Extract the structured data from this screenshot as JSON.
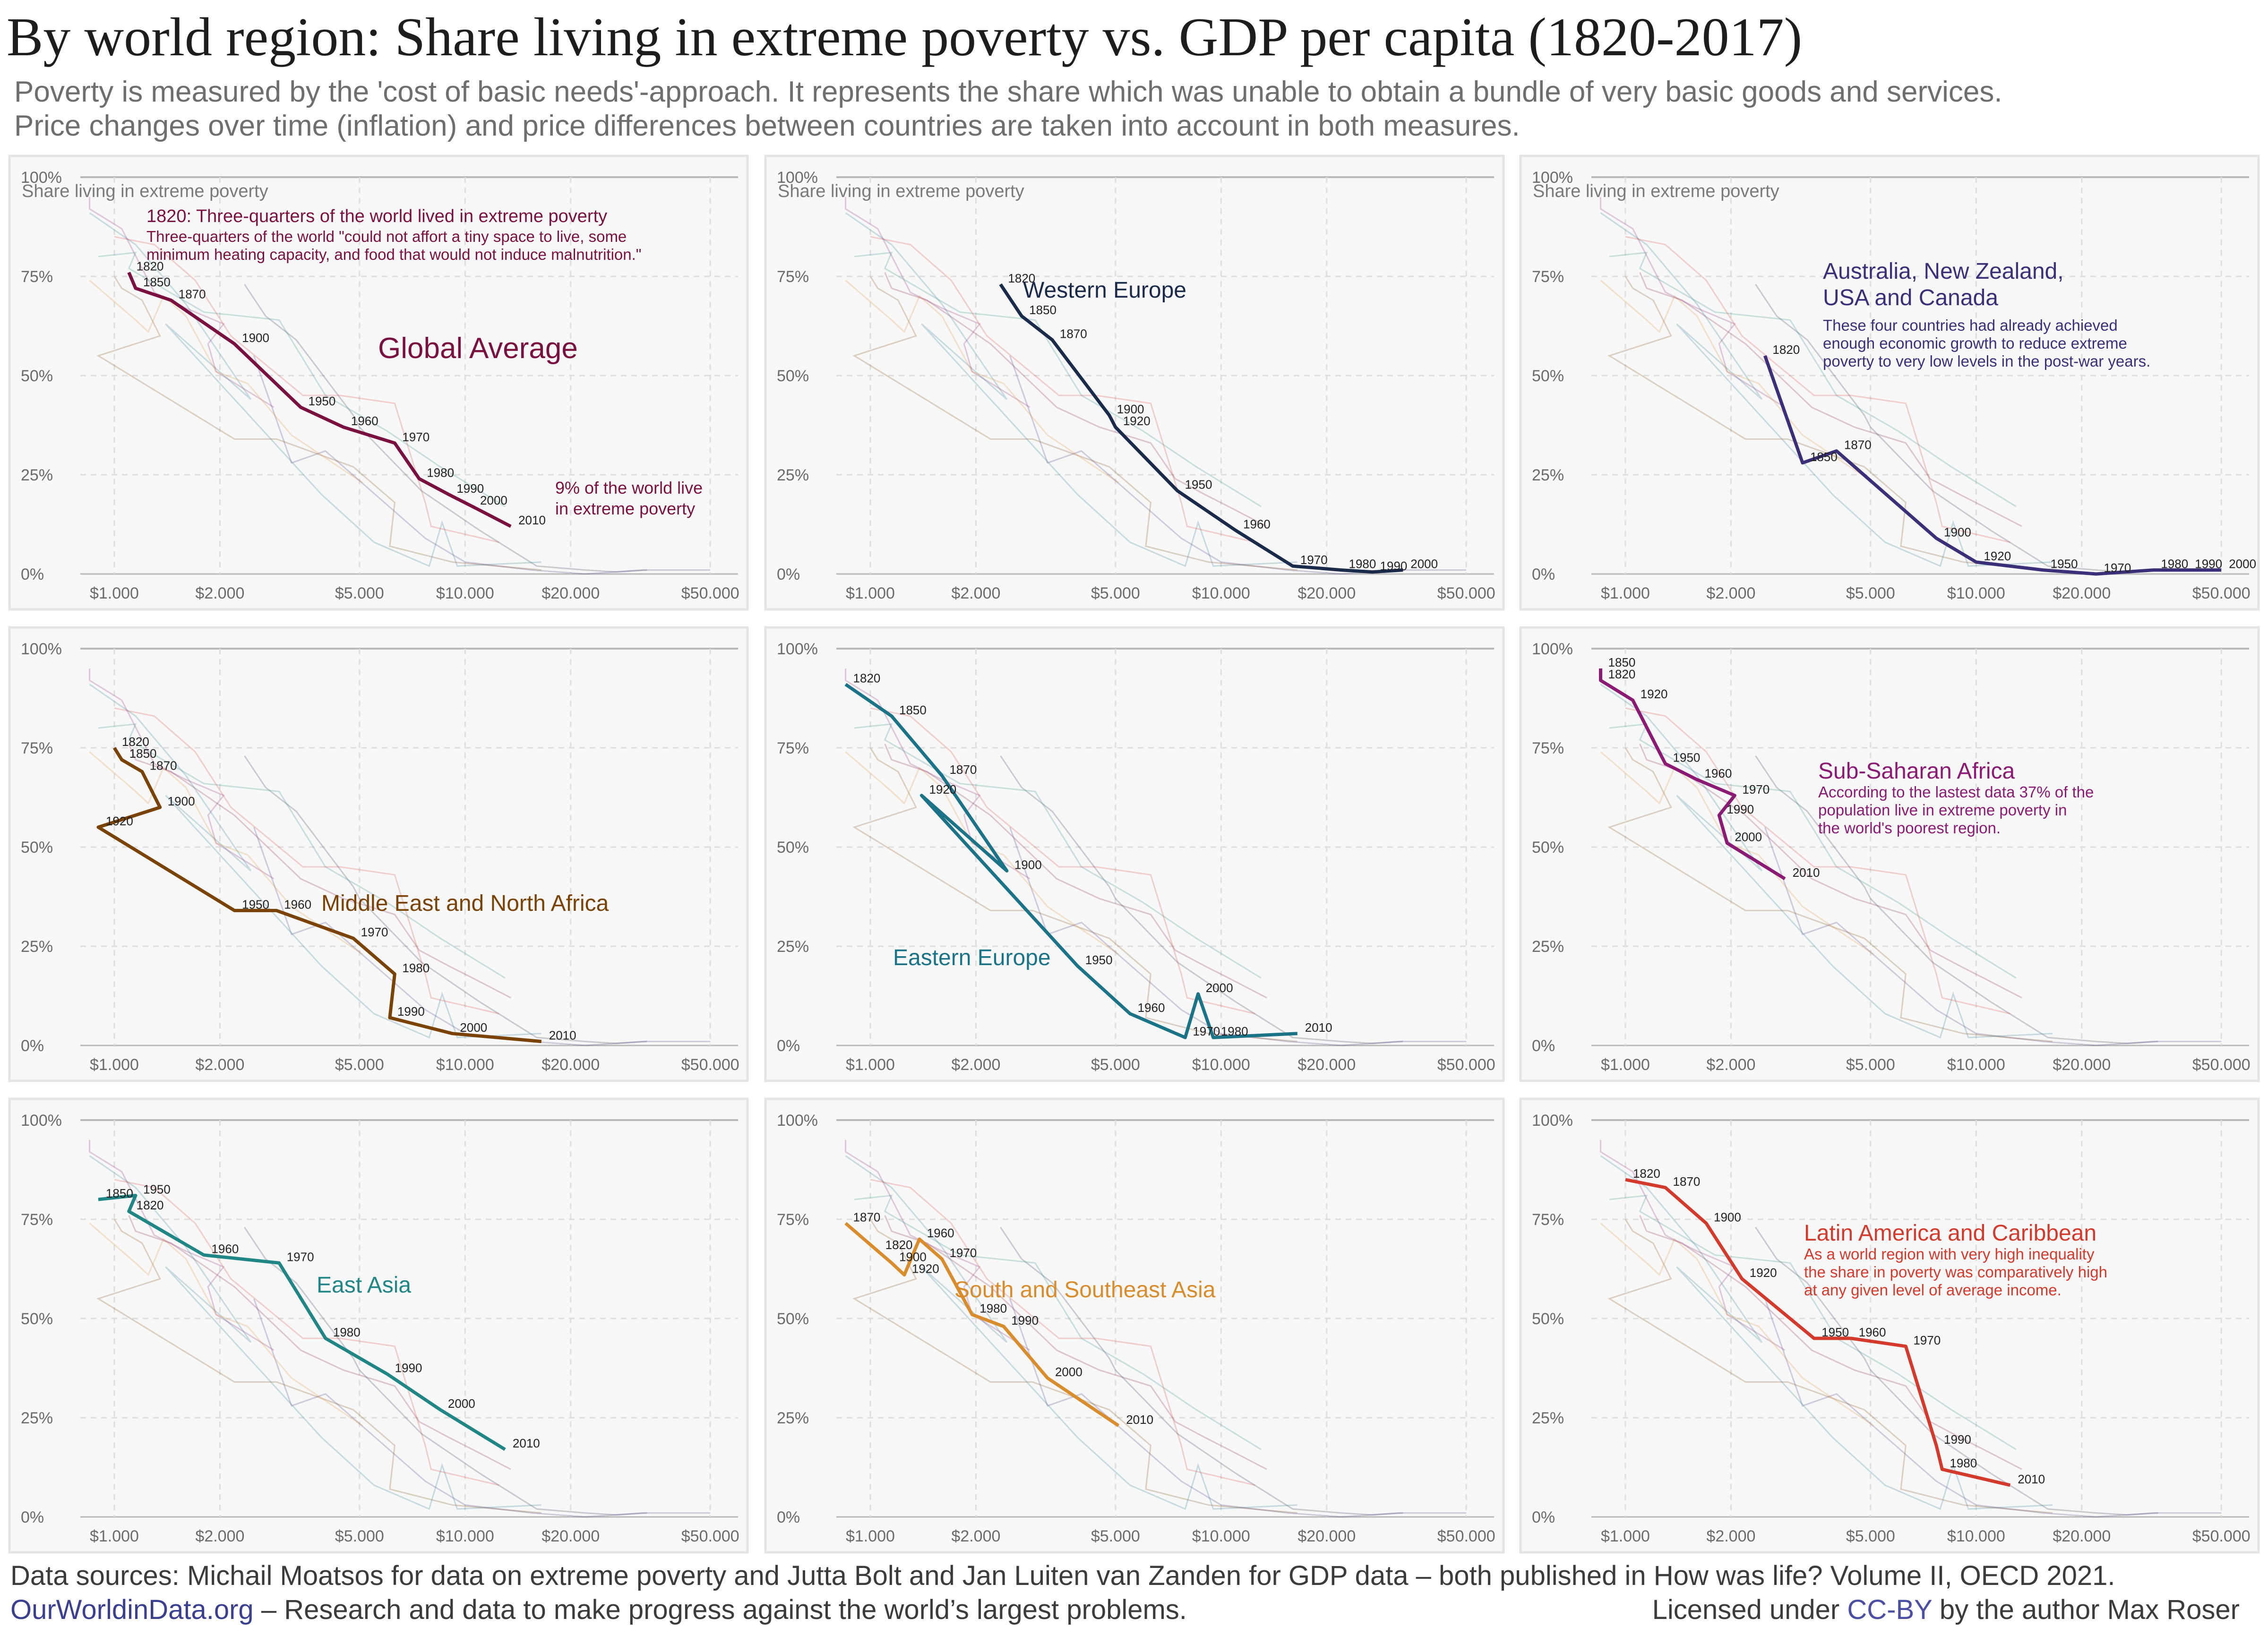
{
  "header": {
    "title": "By world region: Share living in extreme poverty vs. GDP per capita (1820-2017)",
    "subtitle_line1": "Poverty is measured by the 'cost of basic needs'-approach. It represents the share which was unable to obtain a bundle of very basic goods and services.",
    "subtitle_line2": "Price changes over time (inflation) and price differences between countries are taken into account in both measures."
  },
  "footer": {
    "sources": "Data sources: Michail Moatsos for data on extreme poverty and Jutta Bolt and Jan Luiten van Zanden for GDP data – both published in How was life? Volume II, OECD 2021.",
    "site": "OurWorldinData.org",
    "tagline": " – Research and data to make progress against the world’s largest problems.",
    "license_prefix": "Licensed under ",
    "license_link": "CC-BY",
    "license_suffix": " by the author Max Roser"
  },
  "chart_data": [
    {
      "type": "line",
      "title": "Global Average",
      "color": "#7a1040",
      "ylabel": "Share living in extreme poverty",
      "x_scale": "log",
      "xlim": [
        800,
        60000
      ],
      "ylim": [
        0,
        100
      ],
      "x_ticks": [
        "$1.000",
        "$2.000",
        "$5.000",
        "$10.000",
        "$20.000",
        "$50.000"
      ],
      "y_ticks": [
        "0%",
        "25%",
        "50%",
        "75%",
        "100%"
      ],
      "points": [
        {
          "x": 1100,
          "y": 76,
          "label": "1820"
        },
        {
          "x": 1150,
          "y": 72,
          "label": "1850"
        },
        {
          "x": 1450,
          "y": 69,
          "label": "1870"
        },
        {
          "x": 2200,
          "y": 58,
          "label": "1900"
        },
        {
          "x": 3400,
          "y": 42,
          "label": "1950"
        },
        {
          "x": 4500,
          "y": 37,
          "label": "1960"
        },
        {
          "x": 6300,
          "y": 33,
          "label": "1970"
        },
        {
          "x": 7400,
          "y": 24,
          "label": "1980"
        },
        {
          "x": 9000,
          "y": 20,
          "label": "1990"
        },
        {
          "x": 10500,
          "y": 17,
          "label": "2000"
        },
        {
          "x": 13500,
          "y": 12,
          "label": "2010"
        }
      ],
      "annotation_head": "1820: Three-quarters of the world lived in extreme poverty",
      "annotation_lines": [
        "Three-quarters of the world \"could not affort a tiny space to live, some",
        "minimum heating capacity, and food that would not induce malnutrition.\""
      ],
      "annotation2_lines": [
        "9% of the world live",
        "in extreme poverty"
      ]
    },
    {
      "type": "line",
      "title": "Western Europe",
      "color": "#1a2a4a",
      "ylabel": "Share living in extreme poverty",
      "x_scale": "log",
      "xlim": [
        800,
        60000
      ],
      "ylim": [
        0,
        100
      ],
      "x_ticks": [
        "$1.000",
        "$2.000",
        "$5.000",
        "$10.000",
        "$20.000",
        "$50.000"
      ],
      "y_ticks": [
        "0%",
        "25%",
        "50%",
        "75%",
        "100%"
      ],
      "points": [
        {
          "x": 2350,
          "y": 73,
          "label": "1820"
        },
        {
          "x": 2700,
          "y": 65,
          "label": "1850"
        },
        {
          "x": 3300,
          "y": 59,
          "label": "1870"
        },
        {
          "x": 4800,
          "y": 40,
          "label": "1900"
        },
        {
          "x": 5000,
          "y": 37,
          "label": "1920"
        },
        {
          "x": 7500,
          "y": 21,
          "label": "1950"
        },
        {
          "x": 11000,
          "y": 11,
          "label": "1960"
        },
        {
          "x": 16000,
          "y": 2,
          "label": "1970"
        },
        {
          "x": 22000,
          "y": 1,
          "label": "1980"
        },
        {
          "x": 27000,
          "y": 0.5,
          "label": "1990"
        },
        {
          "x": 33000,
          "y": 1,
          "label": "2000"
        }
      ]
    },
    {
      "type": "line",
      "title": "Australia, New Zealand, USA and Canada",
      "color": "#3b2f7a",
      "ylabel": "Share living in extreme poverty",
      "x_scale": "log",
      "xlim": [
        800,
        60000
      ],
      "ylim": [
        0,
        100
      ],
      "x_ticks": [
        "$1.000",
        "$2.000",
        "$5.000",
        "$10.000",
        "$20.000",
        "$50.000"
      ],
      "y_ticks": [
        "0%",
        "25%",
        "50%",
        "75%",
        "100%"
      ],
      "points": [
        {
          "x": 2500,
          "y": 55,
          "label": "1820"
        },
        {
          "x": 3200,
          "y": 28,
          "label": "1850"
        },
        {
          "x": 4000,
          "y": 31,
          "label": "1870"
        },
        {
          "x": 7700,
          "y": 9,
          "label": "1900"
        },
        {
          "x": 10000,
          "y": 3,
          "label": "1920"
        },
        {
          "x": 15500,
          "y": 1,
          "label": "1950"
        },
        {
          "x": 22000,
          "y": 0,
          "label": "1970"
        },
        {
          "x": 32000,
          "y": 1,
          "label": "1980"
        },
        {
          "x": 40000,
          "y": 1,
          "label": "1990"
        },
        {
          "x": 50000,
          "y": 1,
          "label": "2000"
        }
      ],
      "annotation_head_lines": [
        "Australia, New Zealand,",
        "USA and Canada"
      ],
      "annotation_lines": [
        "These four countries had already achieved",
        "enough economic growth to reduce extreme",
        "poverty to very low levels in the post-war years."
      ]
    },
    {
      "type": "line",
      "title": "Middle East and North Africa",
      "color": "#7a4205",
      "ylabel": "",
      "x_scale": "log",
      "xlim": [
        800,
        60000
      ],
      "ylim": [
        0,
        100
      ],
      "x_ticks": [
        "$1.000",
        "$2.000",
        "$5.000",
        "$10.000",
        "$20.000",
        "$50.000"
      ],
      "y_ticks": [
        "0%",
        "25%",
        "50%",
        "75%",
        "100%"
      ],
      "points": [
        {
          "x": 1000,
          "y": 75,
          "label": "1820"
        },
        {
          "x": 1050,
          "y": 72,
          "label": "1850"
        },
        {
          "x": 1200,
          "y": 69,
          "label": "1870"
        },
        {
          "x": 1350,
          "y": 60,
          "label": "1900"
        },
        {
          "x": 900,
          "y": 55,
          "label": "1920"
        },
        {
          "x": 2200,
          "y": 34,
          "label": "1950"
        },
        {
          "x": 2900,
          "y": 34,
          "label": "1960"
        },
        {
          "x": 4800,
          "y": 27,
          "label": "1970"
        },
        {
          "x": 6300,
          "y": 18,
          "label": "1980"
        },
        {
          "x": 6100,
          "y": 7,
          "label": "1990"
        },
        {
          "x": 9200,
          "y": 3,
          "label": "2000"
        },
        {
          "x": 16500,
          "y": 1,
          "label": "2010"
        }
      ]
    },
    {
      "type": "line",
      "title": "Eastern Europe",
      "color": "#1b7388",
      "ylabel": "",
      "x_scale": "log",
      "xlim": [
        800,
        60000
      ],
      "ylim": [
        0,
        100
      ],
      "x_ticks": [
        "$1.000",
        "$2.000",
        "$5.000",
        "$10.000",
        "$20.000",
        "$50.000"
      ],
      "y_ticks": [
        "0%",
        "25%",
        "50%",
        "75%",
        "100%"
      ],
      "points": [
        {
          "x": 850,
          "y": 91,
          "label": "1820"
        },
        {
          "x": 1150,
          "y": 83,
          "label": "1850"
        },
        {
          "x": 1600,
          "y": 68,
          "label": "1870"
        },
        {
          "x": 2450,
          "y": 44,
          "label": "1900"
        },
        {
          "x": 1400,
          "y": 63,
          "label": "1920"
        },
        {
          "x": 3900,
          "y": 20,
          "label": "1950"
        },
        {
          "x": 5500,
          "y": 8,
          "label": "1960"
        },
        {
          "x": 7900,
          "y": 2,
          "label": "1970"
        },
        {
          "x": 8600,
          "y": 13,
          "label": "2000"
        },
        {
          "x": 9500,
          "y": 2,
          "label": "1980"
        },
        {
          "x": 16500,
          "y": 3,
          "label": "2010"
        }
      ]
    },
    {
      "type": "line",
      "title": "Sub-Saharan Africa",
      "color": "#8a1a73",
      "ylabel": "",
      "x_scale": "log",
      "xlim": [
        800,
        60000
      ],
      "ylim": [
        0,
        100
      ],
      "x_ticks": [
        "$1.000",
        "$2.000",
        "$5.000",
        "$10.000",
        "$20.000",
        "$50.000"
      ],
      "y_ticks": [
        "0%",
        "25%",
        "50%",
        "75%",
        "100%"
      ],
      "points": [
        {
          "x": 850,
          "y": 95,
          "label": "1850"
        },
        {
          "x": 850,
          "y": 92,
          "label": "1820"
        },
        {
          "x": 1050,
          "y": 87,
          "label": "1920"
        },
        {
          "x": 1300,
          "y": 71,
          "label": "1950"
        },
        {
          "x": 1600,
          "y": 67,
          "label": "1960"
        },
        {
          "x": 2050,
          "y": 63,
          "label": "1970"
        },
        {
          "x": 1850,
          "y": 58,
          "label": "1990"
        },
        {
          "x": 1950,
          "y": 51,
          "label": "2000"
        },
        {
          "x": 2850,
          "y": 42,
          "label": "2010"
        }
      ],
      "annotation_lines": [
        "According to the lastest data 37% of the",
        "population live in extreme poverty in",
        "the world's poorest region."
      ]
    },
    {
      "type": "line",
      "title": "East Asia",
      "color": "#1f8585",
      "ylabel": "",
      "x_scale": "log",
      "xlim": [
        800,
        60000
      ],
      "ylim": [
        0,
        100
      ],
      "x_ticks": [
        "$1.000",
        "$2.000",
        "$5.000",
        "$10.000",
        "$20.000",
        "$50.000"
      ],
      "y_ticks": [
        "0%",
        "25%",
        "50%",
        "75%",
        "100%"
      ],
      "points": [
        {
          "x": 900,
          "y": 80,
          "label": "1850"
        },
        {
          "x": 1150,
          "y": 81,
          "label": "1950"
        },
        {
          "x": 1100,
          "y": 77,
          "label": "1820"
        },
        {
          "x": 1800,
          "y": 66,
          "label": "1960"
        },
        {
          "x": 2950,
          "y": 64,
          "label": "1970"
        },
        {
          "x": 4000,
          "y": 45,
          "label": "1980"
        },
        {
          "x": 6000,
          "y": 36,
          "label": "1990"
        },
        {
          "x": 8500,
          "y": 27,
          "label": "2000"
        },
        {
          "x": 13000,
          "y": 17,
          "label": "2010"
        }
      ]
    },
    {
      "type": "line",
      "title": "South and Southeast Asia",
      "color": "#d98c2b",
      "ylabel": "",
      "x_scale": "log",
      "xlim": [
        800,
        60000
      ],
      "ylim": [
        0,
        100
      ],
      "x_ticks": [
        "$1.000",
        "$2.000",
        "$5.000",
        "$10.000",
        "$20.000",
        "$50.000"
      ],
      "y_ticks": [
        "0%",
        "25%",
        "50%",
        "75%",
        "100%"
      ],
      "points": [
        {
          "x": 850,
          "y": 74,
          "label": "1870"
        },
        {
          "x": 1050,
          "y": 67,
          "label": "1820"
        },
        {
          "x": 1150,
          "y": 64,
          "label": "1900"
        },
        {
          "x": 1250,
          "y": 61,
          "label": "1920"
        },
        {
          "x": 1380,
          "y": 70,
          "label": "1960"
        },
        {
          "x": 1600,
          "y": 65,
          "label": "1970"
        },
        {
          "x": 1950,
          "y": 51,
          "label": "1980"
        },
        {
          "x": 2400,
          "y": 48,
          "label": "1990"
        },
        {
          "x": 3200,
          "y": 35,
          "label": "2000"
        },
        {
          "x": 5100,
          "y": 23,
          "label": "2010"
        }
      ]
    },
    {
      "type": "line",
      "title": "Latin America and Caribbean",
      "color": "#d33a2c",
      "ylabel": "",
      "x_scale": "log",
      "xlim": [
        800,
        60000
      ],
      "ylim": [
        0,
        100
      ],
      "x_ticks": [
        "$1.000",
        "$2.000",
        "$5.000",
        "$10.000",
        "$20.000",
        "$50.000"
      ],
      "y_ticks": [
        "0%",
        "25%",
        "50%",
        "75%",
        "100%"
      ],
      "points": [
        {
          "x": 1000,
          "y": 85,
          "label": "1820"
        },
        {
          "x": 1300,
          "y": 83,
          "label": "1870"
        },
        {
          "x": 1700,
          "y": 74,
          "label": "1900"
        },
        {
          "x": 2150,
          "y": 60,
          "label": "1920"
        },
        {
          "x": 3450,
          "y": 45,
          "label": "1950"
        },
        {
          "x": 4400,
          "y": 45,
          "label": "1960"
        },
        {
          "x": 6300,
          "y": 43,
          "label": "1970"
        },
        {
          "x": 7700,
          "y": 18,
          "label": "1990"
        },
        {
          "x": 8000,
          "y": 12,
          "label": "1980"
        },
        {
          "x": 12500,
          "y": 8,
          "label": "2010"
        }
      ],
      "annotation_lines": [
        "As a world region with very high inequality",
        "the share in poverty was comparatively high",
        "at any given level of average income."
      ]
    }
  ]
}
